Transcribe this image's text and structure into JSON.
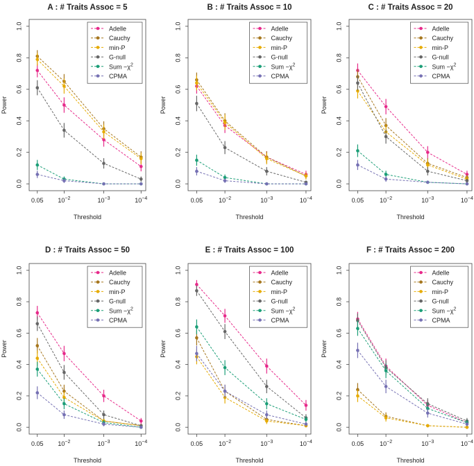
{
  "chart_data": [
    {
      "type": "line",
      "title": "A : # Traits Assoc = 5",
      "xlabel": "Threshold",
      "ylabel": "Power",
      "ylim": [
        0,
        1
      ],
      "categories": [
        "0.05",
        "10^-2",
        "10^-3",
        "10^-4"
      ],
      "series": [
        {
          "name": "Adelle",
          "values": [
            0.72,
            0.5,
            0.28,
            0.11
          ]
        },
        {
          "name": "Cauchy",
          "values": [
            0.81,
            0.65,
            0.35,
            0.17
          ]
        },
        {
          "name": "min-P",
          "values": [
            0.79,
            0.62,
            0.33,
            0.16
          ]
        },
        {
          "name": "G-null",
          "values": [
            0.61,
            0.34,
            0.13,
            0.03
          ]
        },
        {
          "name": "Sum-χ2",
          "values": [
            0.12,
            0.03,
            0.0,
            0.0
          ]
        },
        {
          "name": "CPMA",
          "values": [
            0.06,
            0.02,
            0.0,
            0.0
          ]
        }
      ]
    },
    {
      "type": "line",
      "title": "B : # Traits Assoc = 10",
      "xlabel": "Threshold",
      "ylabel": "Power",
      "ylim": [
        0,
        1
      ],
      "categories": [
        "0.05",
        "10^-2",
        "10^-3",
        "10^-4"
      ],
      "series": [
        {
          "name": "Adelle",
          "values": [
            0.62,
            0.37,
            0.17,
            0.06
          ]
        },
        {
          "name": "Cauchy",
          "values": [
            0.66,
            0.4,
            0.17,
            0.05
          ]
        },
        {
          "name": "min-P",
          "values": [
            0.64,
            0.39,
            0.16,
            0.05
          ]
        },
        {
          "name": "G-null",
          "values": [
            0.51,
            0.23,
            0.08,
            0.01
          ]
        },
        {
          "name": "Sum-χ2",
          "values": [
            0.15,
            0.04,
            0.0,
            0.0
          ]
        },
        {
          "name": "CPMA",
          "values": [
            0.08,
            0.02,
            0.0,
            0.0
          ]
        }
      ]
    },
    {
      "type": "line",
      "title": "C : # Traits Assoc = 20",
      "xlabel": "Threshold",
      "ylabel": "Power",
      "ylim": [
        0,
        1
      ],
      "categories": [
        "0.05",
        "10^-2",
        "10^-3",
        "10^-4"
      ],
      "series": [
        {
          "name": "Adelle",
          "values": [
            0.72,
            0.49,
            0.2,
            0.06
          ]
        },
        {
          "name": "Cauchy",
          "values": [
            0.68,
            0.37,
            0.13,
            0.04
          ]
        },
        {
          "name": "min-P",
          "values": [
            0.59,
            0.33,
            0.12,
            0.03
          ]
        },
        {
          "name": "G-null",
          "values": [
            0.64,
            0.3,
            0.08,
            0.02
          ]
        },
        {
          "name": "Sum-χ2",
          "values": [
            0.21,
            0.06,
            0.01,
            0.0
          ]
        },
        {
          "name": "CPMA",
          "values": [
            0.12,
            0.03,
            0.01,
            0.0
          ]
        }
      ]
    },
    {
      "type": "line",
      "title": "D : # Traits Assoc = 50",
      "xlabel": "Threshold",
      "ylabel": "Power",
      "ylim": [
        0,
        1
      ],
      "categories": [
        "0.05",
        "10^-2",
        "10^-3",
        "10^-4"
      ],
      "series": [
        {
          "name": "Adelle",
          "values": [
            0.73,
            0.47,
            0.2,
            0.04
          ]
        },
        {
          "name": "Cauchy",
          "values": [
            0.52,
            0.23,
            0.04,
            0.01
          ]
        },
        {
          "name": "min-P",
          "values": [
            0.44,
            0.19,
            0.04,
            0.01
          ]
        },
        {
          "name": "G-null",
          "values": [
            0.66,
            0.35,
            0.08,
            0.01
          ]
        },
        {
          "name": "Sum-χ2",
          "values": [
            0.37,
            0.15,
            0.03,
            0.0
          ]
        },
        {
          "name": "CPMA",
          "values": [
            0.22,
            0.08,
            0.02,
            0.0
          ]
        }
      ]
    },
    {
      "type": "line",
      "title": "E : # Traits Assoc = 100",
      "xlabel": "Threshold",
      "ylabel": "Power",
      "ylim": [
        0,
        1
      ],
      "categories": [
        "0.05",
        "10^-2",
        "10^-3",
        "10^-4"
      ],
      "series": [
        {
          "name": "Adelle",
          "values": [
            0.91,
            0.71,
            0.39,
            0.14
          ]
        },
        {
          "name": "Cauchy",
          "values": [
            0.57,
            0.23,
            0.05,
            0.01
          ]
        },
        {
          "name": "min-P",
          "values": [
            0.45,
            0.19,
            0.04,
            0.01
          ]
        },
        {
          "name": "G-null",
          "values": [
            0.87,
            0.61,
            0.26,
            0.06
          ]
        },
        {
          "name": "Sum-χ2",
          "values": [
            0.64,
            0.38,
            0.15,
            0.05
          ]
        },
        {
          "name": "CPMA",
          "values": [
            0.47,
            0.23,
            0.08,
            0.02
          ]
        }
      ]
    },
    {
      "type": "line",
      "title": "F : # Traits Assoc = 200",
      "xlabel": "Threshold",
      "ylabel": "Power",
      "ylim": [
        0,
        1
      ],
      "categories": [
        "0.05",
        "10^-2",
        "10^-3",
        "10^-4"
      ],
      "series": [
        {
          "name": "Adelle",
          "values": [
            0.69,
            0.39,
            0.14,
            0.03
          ]
        },
        {
          "name": "Cauchy",
          "values": [
            0.24,
            0.07,
            0.01,
            0.0
          ]
        },
        {
          "name": "min-P",
          "values": [
            0.2,
            0.06,
            0.01,
            0.0
          ]
        },
        {
          "name": "G-null",
          "values": [
            0.68,
            0.38,
            0.15,
            0.04
          ]
        },
        {
          "name": "Sum-χ2",
          "values": [
            0.63,
            0.36,
            0.12,
            0.03
          ]
        },
        {
          "name": "CPMA",
          "values": [
            0.49,
            0.26,
            0.09,
            0.02
          ]
        }
      ]
    }
  ],
  "series_colors": [
    "#e7298a",
    "#a6761d",
    "#e6ab02",
    "#666666",
    "#1b9e77",
    "#7570b3"
  ],
  "legend_labels": [
    "Adelle",
    "Cauchy",
    "min-P",
    "G-null",
    "Sum −χ",
    "CPMA"
  ],
  "legend_superscript": "2",
  "y_ticks": [
    "0.0",
    "0.2",
    "0.4",
    "0.6",
    "0.8",
    "1.0"
  ],
  "x_tick_labels": [
    {
      "base": "0.05",
      "exp": ""
    },
    {
      "base": "10",
      "exp": "−2"
    },
    {
      "base": "10",
      "exp": "−3"
    },
    {
      "base": "10",
      "exp": "−4"
    }
  ]
}
